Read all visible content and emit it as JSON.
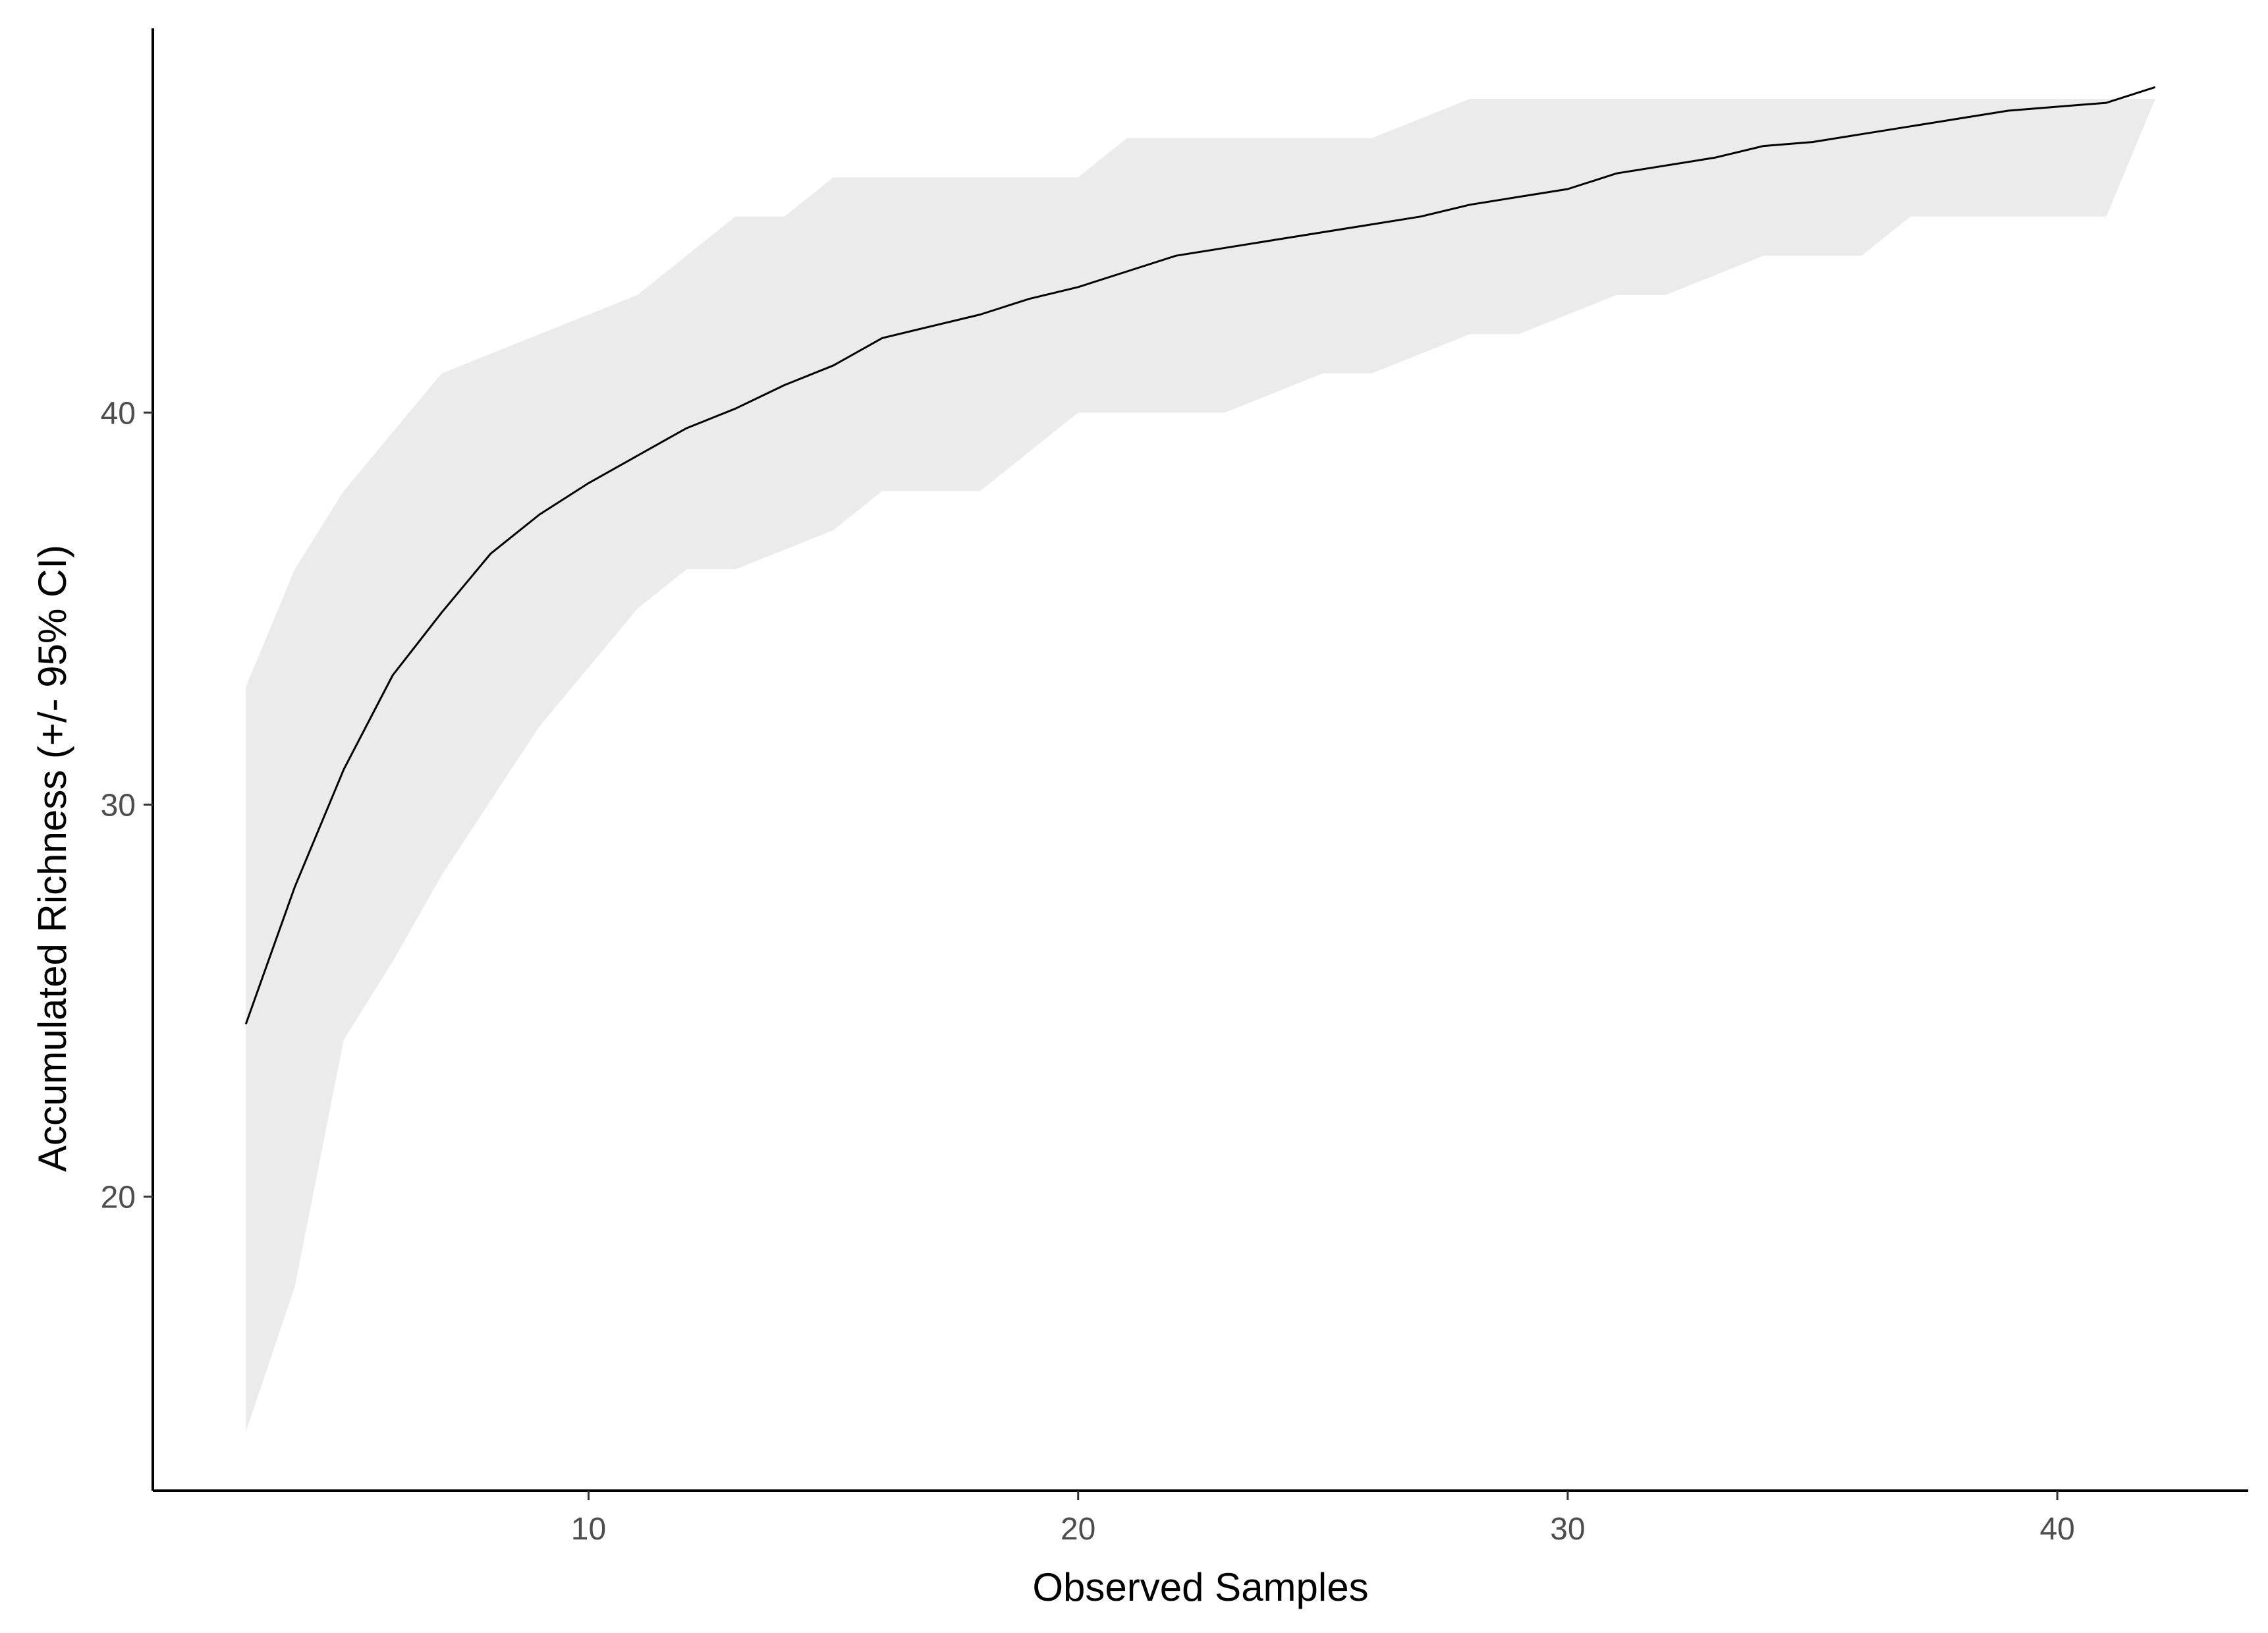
{
  "chart_data": {
    "type": "line",
    "title": "",
    "xlabel": "Observed Samples",
    "ylabel": "Accumulated Richness (+/- 95% CI)",
    "xlim": [
      1.1,
      43.9
    ],
    "ylim": [
      12.5,
      49.8
    ],
    "x_ticks": [
      10,
      20,
      30,
      40
    ],
    "x_tick_labels": [
      "10",
      "20",
      "30",
      "40"
    ],
    "y_ticks": [
      20,
      30,
      40
    ],
    "y_tick_labels": [
      "20",
      "30",
      "40"
    ],
    "grid": false,
    "legend": "none",
    "colors": {
      "line": "#000000",
      "ribbon": "#ebebeb",
      "axis": "#000000",
      "tick_text": "#4d4d4d",
      "background": "#ffffff"
    },
    "x": [
      3,
      4,
      5,
      6,
      7,
      8,
      9,
      10,
      11,
      12,
      13,
      14,
      15,
      16,
      17,
      18,
      19,
      20,
      21,
      22,
      23,
      24,
      25,
      26,
      27,
      28,
      29,
      30,
      31,
      32,
      33,
      34,
      35,
      36,
      37,
      38,
      39,
      40,
      41,
      42
    ],
    "series": [
      {
        "values": [
          24.4,
          27.9,
          30.9,
          33.3,
          34.9,
          36.4,
          37.4,
          38.2,
          38.9,
          39.6,
          40.1,
          40.7,
          41.2,
          41.9,
          42.2,
          42.5,
          42.9,
          43.2,
          43.6,
          44.0,
          44.2,
          44.4,
          44.6,
          44.8,
          45.0,
          45.3,
          45.5,
          45.7,
          46.1,
          46.3,
          46.5,
          46.8,
          46.9,
          47.1,
          47.3,
          47.5,
          47.7,
          47.8,
          47.9,
          48.3
        ],
        "lower": [
          14.0,
          17.7,
          24.0,
          26.0,
          28.2,
          30.1,
          32.0,
          33.5,
          35.0,
          36.0,
          36.0,
          36.5,
          37.0,
          38.0,
          38.0,
          38.0,
          39.0,
          40.0,
          40.0,
          40.0,
          40.0,
          40.5,
          41.0,
          41.0,
          41.5,
          42.0,
          42.0,
          42.5,
          43.0,
          43.0,
          43.5,
          44.0,
          44.0,
          44.0,
          45.0,
          45.0,
          45.0,
          45.0,
          45.0,
          48.0
        ],
        "upper": [
          33.0,
          36.0,
          38.0,
          39.5,
          41.0,
          41.5,
          42.0,
          42.5,
          43.0,
          44.0,
          45.0,
          45.0,
          46.0,
          46.0,
          46.0,
          46.0,
          46.0,
          46.0,
          47.0,
          47.0,
          47.0,
          47.0,
          47.0,
          47.0,
          47.5,
          48.0,
          48.0,
          48.0,
          48.0,
          48.0,
          48.0,
          48.0,
          48.0,
          48.0,
          48.0,
          48.0,
          48.0,
          48.0,
          48.0,
          48.0
        ]
      }
    ]
  }
}
